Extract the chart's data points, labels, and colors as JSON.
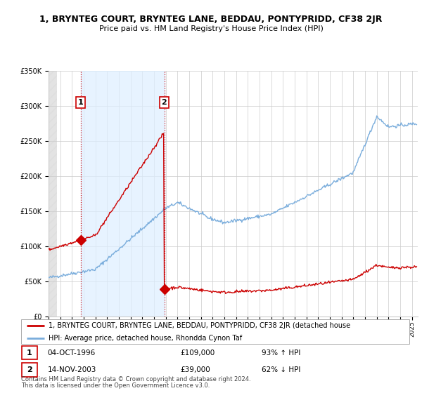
{
  "title": "1, BRYNTEG COURT, BRYNTEG LANE, BEDDAU, PONTYPRIDD, CF38 2JR",
  "subtitle": "Price paid vs. HM Land Registry's House Price Index (HPI)",
  "sale1_date": "04-OCT-1996",
  "sale1_price": 109000,
  "sale1_hpi": "93% ↑ HPI",
  "sale1_label": "1",
  "sale2_date": "14-NOV-2003",
  "sale2_price": 39000,
  "sale2_hpi": "62% ↓ HPI",
  "sale2_label": "2",
  "legend_line1": "1, BRYNTEG COURT, BRYNTEG LANE, BEDDAU, PONTYPRIDD, CF38 2JR (detached house",
  "legend_line2": "HPI: Average price, detached house, Rhondda Cynon Taf",
  "footer1": "Contains HM Land Registry data © Crown copyright and database right 2024.",
  "footer2": "This data is licensed under the Open Government Licence v3.0.",
  "hpi_color": "#7aaddc",
  "price_color": "#cc0000",
  "sale1_x": 1996.75,
  "sale2_x": 2003.87,
  "xmin": 1994.0,
  "xmax": 2025.5,
  "ymin": 0,
  "ymax": 350000,
  "grid_color": "#cccccc",
  "between_fill_color": "#ddeeff",
  "hatch_color": "#dddddd"
}
